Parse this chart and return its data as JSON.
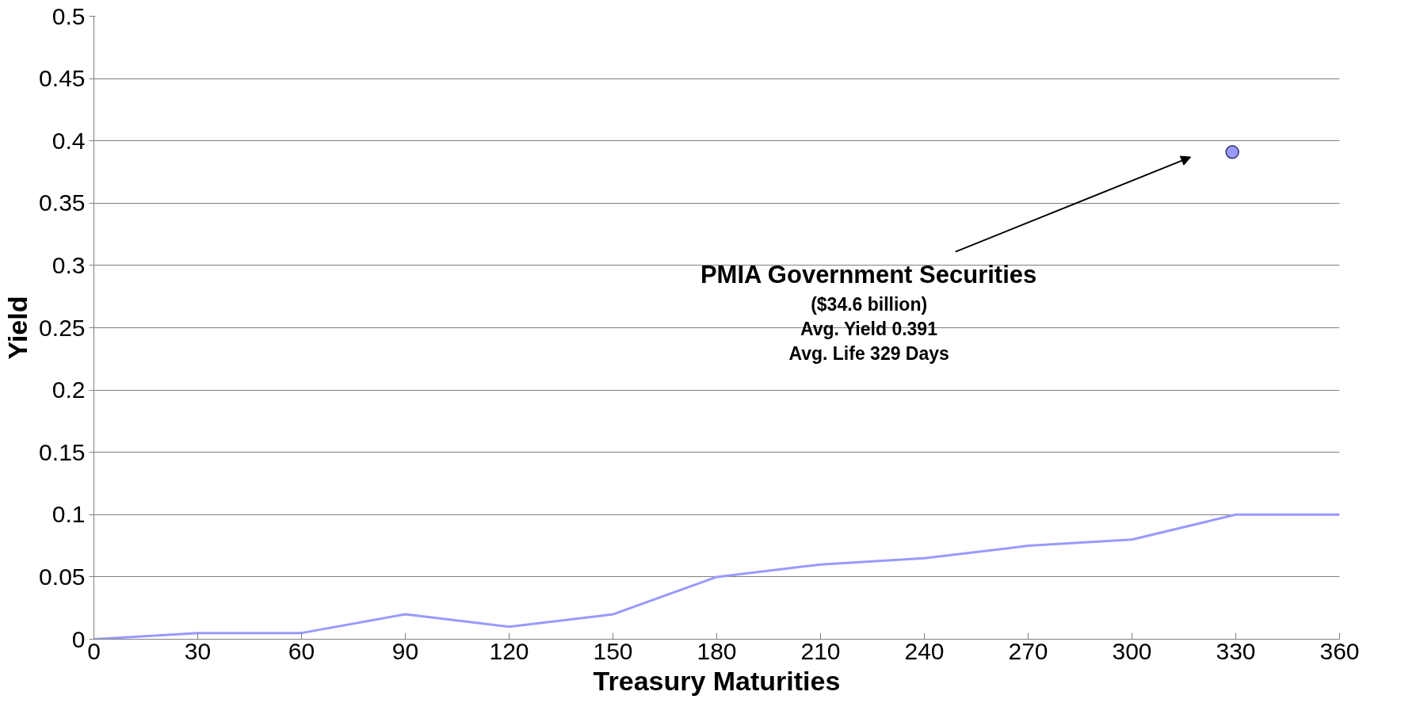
{
  "chart_data": {
    "type": "line",
    "xlabel": "Treasury Maturities",
    "ylabel": "Yield",
    "xlim": [
      0,
      360
    ],
    "xticks": [
      0,
      30,
      60,
      90,
      120,
      150,
      180,
      210,
      240,
      270,
      300,
      330,
      360
    ],
    "ylim": [
      0,
      0.5
    ],
    "yticks": [
      0,
      0.05,
      0.1,
      0.15,
      0.2,
      0.25,
      0.3,
      0.35,
      0.4,
      0.45,
      0.5
    ],
    "grid": "y",
    "series": [
      {
        "color": "#9999ff",
        "x": [
          0,
          30,
          60,
          90,
          120,
          150,
          180,
          210,
          240,
          270,
          300,
          330,
          360
        ],
        "values": [
          0,
          0.005,
          0.005,
          0.02,
          0.01,
          0.02,
          0.05,
          0.06,
          0.065,
          0.075,
          0.08,
          0.1,
          0.1
        ]
      },
      {
        "type": "scatter",
        "marker": "circle",
        "color": "#9999ff",
        "x": [
          329
        ],
        "values": [
          0.391
        ]
      }
    ],
    "annotations": [
      "PMIA Government Securities",
      "($34.6 billion)",
      "Avg. Yield 0.391",
      "Avg. Life 329 Days"
    ]
  }
}
